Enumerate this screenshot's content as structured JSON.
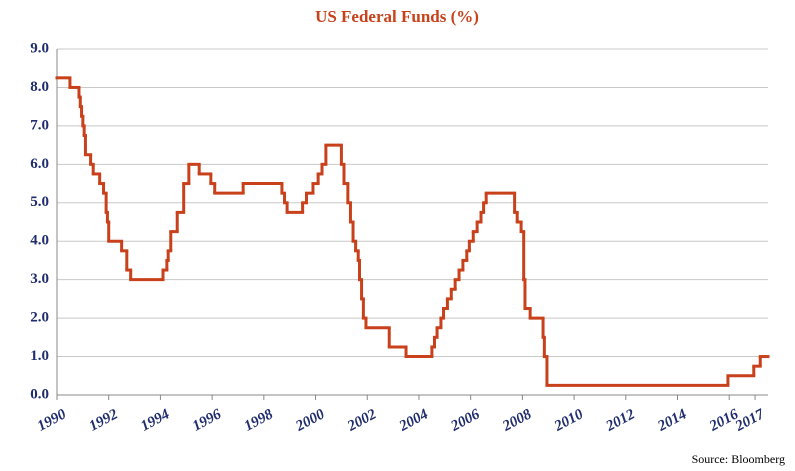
{
  "chart_data": {
    "type": "line",
    "step": "post",
    "title": "US Federal Funds (%)",
    "source": "Source: Bloomberg",
    "color": "#c8411b",
    "grid": true,
    "xlim": [
      1990,
      2017.5
    ],
    "ylim": [
      0,
      9
    ],
    "xticks": [
      1990,
      1992,
      1994,
      1996,
      1998,
      2000,
      2002,
      2004,
      2006,
      2008,
      2010,
      2012,
      2014,
      2016,
      2017
    ],
    "yticks": [
      {
        "value": 0,
        "label": "0.0"
      },
      {
        "value": 1,
        "label": "1.0"
      },
      {
        "value": 2,
        "label": "2.0"
      },
      {
        "value": 3,
        "label": "3.0"
      },
      {
        "value": 4,
        "label": "4.0"
      },
      {
        "value": 5,
        "label": "5.0"
      },
      {
        "value": 6,
        "label": "6.0"
      },
      {
        "value": 7,
        "label": "7.0"
      },
      {
        "value": 8,
        "label": "8.0"
      },
      {
        "value": 9,
        "label": "9.0"
      }
    ],
    "x": [
      1990.0,
      1990.5,
      1990.85,
      1990.9,
      1990.95,
      1991.0,
      1991.05,
      1991.1,
      1991.3,
      1991.4,
      1991.65,
      1991.8,
      1991.9,
      1991.95,
      1992.0,
      1992.5,
      1992.7,
      1992.85,
      1994.1,
      1994.25,
      1994.3,
      1994.4,
      1994.65,
      1994.9,
      1995.1,
      1995.5,
      1995.95,
      1996.1,
      1997.2,
      1998.7,
      1998.8,
      1998.9,
      1999.5,
      1999.65,
      1999.9,
      2000.1,
      2000.25,
      2000.4,
      2001.0,
      2001.1,
      2001.25,
      2001.35,
      2001.45,
      2001.55,
      2001.65,
      2001.7,
      2001.78,
      2001.85,
      2001.95,
      2002.85,
      2003.5,
      2004.5,
      2004.6,
      2004.7,
      2004.85,
      2004.95,
      2005.1,
      2005.25,
      2005.4,
      2005.55,
      2005.7,
      2005.85,
      2005.95,
      2006.1,
      2006.25,
      2006.4,
      2006.5,
      2006.6,
      2007.7,
      2007.8,
      2007.95,
      2008.05,
      2008.1,
      2008.3,
      2008.8,
      2008.85,
      2008.95,
      2015.95,
      2016.95,
      2017.2
    ],
    "values": [
      8.25,
      8.0,
      7.75,
      7.5,
      7.25,
      7.0,
      6.75,
      6.25,
      6.0,
      5.75,
      5.5,
      5.25,
      4.75,
      4.5,
      4.0,
      3.75,
      3.25,
      3.0,
      3.25,
      3.5,
      3.75,
      4.25,
      4.75,
      5.5,
      6.0,
      5.75,
      5.5,
      5.25,
      5.5,
      5.25,
      5.0,
      4.75,
      5.0,
      5.25,
      5.5,
      5.75,
      6.0,
      6.5,
      6.0,
      5.5,
      5.0,
      4.5,
      4.0,
      3.75,
      3.5,
      3.0,
      2.5,
      2.0,
      1.75,
      1.25,
      1.0,
      1.25,
      1.5,
      1.75,
      2.0,
      2.25,
      2.5,
      2.75,
      3.0,
      3.25,
      3.5,
      3.75,
      4.0,
      4.25,
      4.5,
      4.75,
      5.0,
      5.25,
      4.75,
      4.5,
      4.25,
      3.0,
      2.25,
      2.0,
      1.5,
      1.0,
      0.25,
      0.5,
      0.75,
      1.0
    ]
  }
}
